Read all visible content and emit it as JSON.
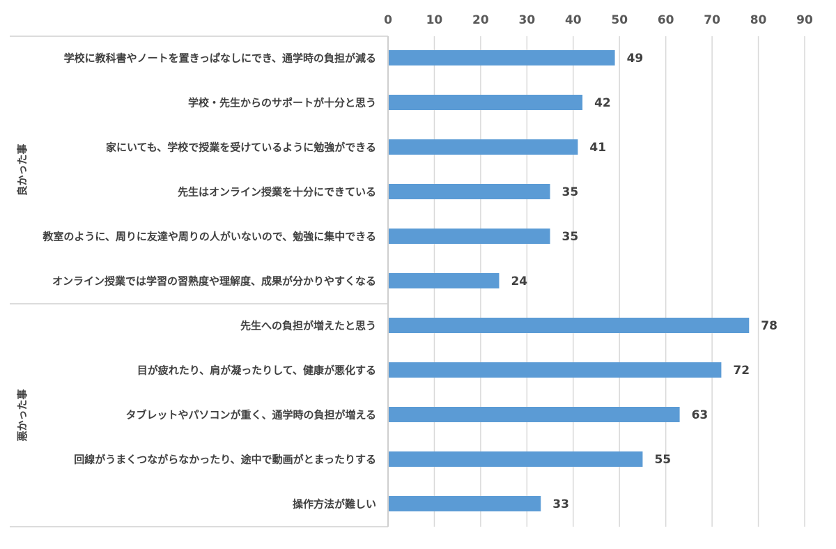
{
  "chart_data": {
    "type": "bar",
    "orientation": "horizontal",
    "xlim": [
      0,
      90
    ],
    "ticks": [
      0,
      10,
      20,
      30,
      40,
      50,
      60,
      70,
      80,
      90
    ],
    "grid": true,
    "bar_color": "#5B9BD5",
    "groups": [
      {
        "label": "良かった事",
        "categories": [
          "学校に教科書やノートを置きっぱなしにでき、通学時の負担が減る",
          "学校・先生からのサポートが十分と思う",
          "家にいても、学校で授業を受けているように勉強ができる",
          "先生はオンライン授業を十分にできている",
          "教室のように、周りに友達や周りの人がいないので、勉強に集中できる",
          "オンライン授業では学習の習熟度や理解度、成果が分かりやすくなる"
        ],
        "values": [
          49,
          42,
          41,
          35,
          35,
          24
        ]
      },
      {
        "label": "悪かった事",
        "categories": [
          "先生への負担が増えたと思う",
          "目が疲れたり、肩が凝ったりして、健康が悪化する",
          "タブレットやパソコンが重く、通学時の負担が増える",
          "回線がうまくつながらなかったり、途中で動画がとまったりする",
          "操作方法が難しい"
        ],
        "values": [
          78,
          72,
          63,
          55,
          33
        ]
      }
    ]
  }
}
